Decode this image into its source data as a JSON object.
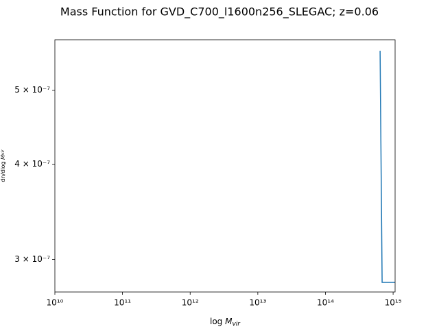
{
  "chart_data": {
    "type": "line",
    "title": "Mass Function for GVD_C700_l1600n256_SLEGAC; z=0.06",
    "xlabel": {
      "prefix": "log ",
      "symbol": "M",
      "subscript": "vir"
    },
    "ylabel": {
      "prefix": "dn/dlog ",
      "symbol": "M",
      "subscript": "vir"
    },
    "xscale": "log",
    "yscale": "log",
    "xlim": [
      10000000000.0,
      1070000000000000.0
    ],
    "ylim": [
      2.72e-07,
      5.82e-07
    ],
    "xticks": [
      {
        "value": 10000000000.0,
        "label": "10¹⁰"
      },
      {
        "value": 100000000000.0,
        "label": "10¹¹"
      },
      {
        "value": 1000000000000.0,
        "label": "10¹²"
      },
      {
        "value": 10000000000000.0,
        "label": "10¹³"
      },
      {
        "value": 100000000000000.0,
        "label": "10¹⁴"
      },
      {
        "value": 1000000000000000.0,
        "label": "10¹⁵"
      }
    ],
    "yticks": [
      {
        "value": 3e-07,
        "label": "3 × 10⁻⁷"
      },
      {
        "value": 4e-07,
        "label": "4 × 10⁻⁷"
      },
      {
        "value": 5e-07,
        "label": "5 × 10⁻⁷"
      }
    ],
    "series": [
      {
        "color": "#1f77b4",
        "x": [
          642000000000000.0,
          688000000000000.0,
          1070000000000000.0
        ],
        "values": [
          5.63e-07,
          2.8e-07,
          2.8e-07
        ]
      }
    ]
  }
}
